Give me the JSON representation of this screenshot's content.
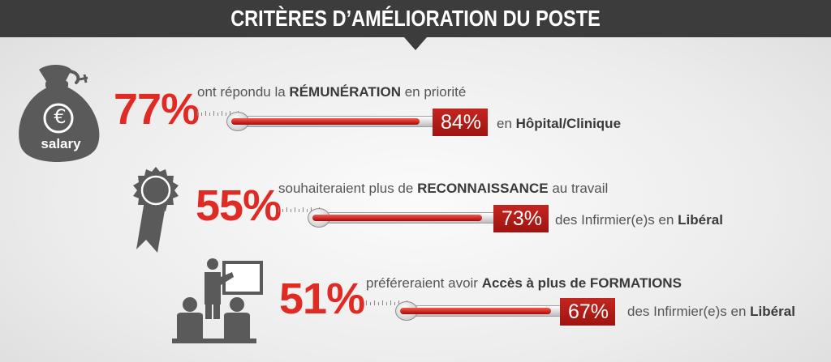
{
  "title": "CRITÈRES D’AMÉLIORATION DU POSTE",
  "colors": {
    "accent": "#e02a24",
    "banner": "#3c3c3c",
    "icon": "#5a5a5a"
  },
  "rows": [
    {
      "icon": "money-bag-icon",
      "icon_label": "salary",
      "icon_symbol": "€",
      "percent": "77%",
      "text_before": "ont répondu la ",
      "text_bold": "RÉMUNÉRATION",
      "text_after": " en priorité",
      "tag": "84%",
      "fill_fraction": 0.84,
      "after_plain": "en ",
      "after_bold": "Hôpital/Clinique"
    },
    {
      "icon": "award-ribbon-icon",
      "percent": "55%",
      "text_before": "souhaiteraient plus de ",
      "text_bold": "RECONNAISSANCE",
      "text_after": " au travail",
      "tag": "73%",
      "fill_fraction": 0.73,
      "after_plain": "des Infirmier(e)s en ",
      "after_bold": "Libéral"
    },
    {
      "icon": "training-presentation-icon",
      "percent": "51%",
      "text_before": "préféreraient avoir ",
      "text_bold": "Accès à plus de FORMATIONS",
      "text_after": "",
      "tag": "67%",
      "fill_fraction": 0.67,
      "after_plain": "des Infirmier(e)s en ",
      "after_bold": "Libéral"
    }
  ]
}
